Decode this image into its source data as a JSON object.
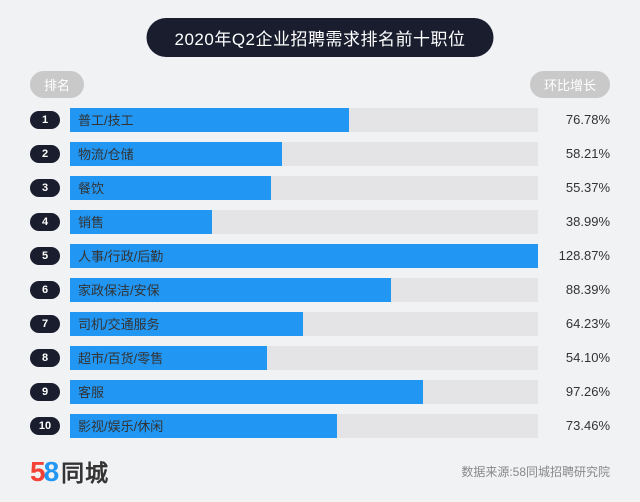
{
  "title": "2020年Q2企业招聘需求排名前十职位",
  "header_left": "排名",
  "header_right": "环比增长",
  "colors": {
    "bar_fill": "#2196f3",
    "bar_track": "#e4e4e6",
    "title_pill_bg": "#1a1d2e",
    "header_badge_bg": "#c9c9c9",
    "background": "#f1f2f4",
    "rank_badge_bg": "#1a1d2e"
  },
  "bar_max_percent": 128.87,
  "rows": [
    {
      "rank": "1",
      "label": "普工/技工",
      "pct_text": "76.78%",
      "width_pct": 59.6
    },
    {
      "rank": "2",
      "label": "物流/仓储",
      "pct_text": "58.21%",
      "width_pct": 45.2
    },
    {
      "rank": "3",
      "label": "餐饮",
      "pct_text": "55.37%",
      "width_pct": 43.0
    },
    {
      "rank": "4",
      "label": "销售",
      "pct_text": "38.99%",
      "width_pct": 30.3
    },
    {
      "rank": "5",
      "label": "人事/行政/后勤",
      "pct_text": "128.87%",
      "width_pct": 100.0
    },
    {
      "rank": "6",
      "label": "家政保洁/安保",
      "pct_text": "88.39%",
      "width_pct": 68.6
    },
    {
      "rank": "7",
      "label": "司机/交通服务",
      "pct_text": "64.23%",
      "width_pct": 49.8
    },
    {
      "rank": "8",
      "label": "超市/百货/零售",
      "pct_text": "54.10%",
      "width_pct": 42.0
    },
    {
      "rank": "9",
      "label": "客服",
      "pct_text": "97.26%",
      "width_pct": 75.5
    },
    {
      "rank": "10",
      "label": "影视/娱乐/休闲",
      "pct_text": "73.46%",
      "width_pct": 57.0
    }
  ],
  "logo": {
    "n1": "5",
    "n2": "8",
    "text": "同城"
  },
  "source": "数据来源:58同城招聘研究院"
}
